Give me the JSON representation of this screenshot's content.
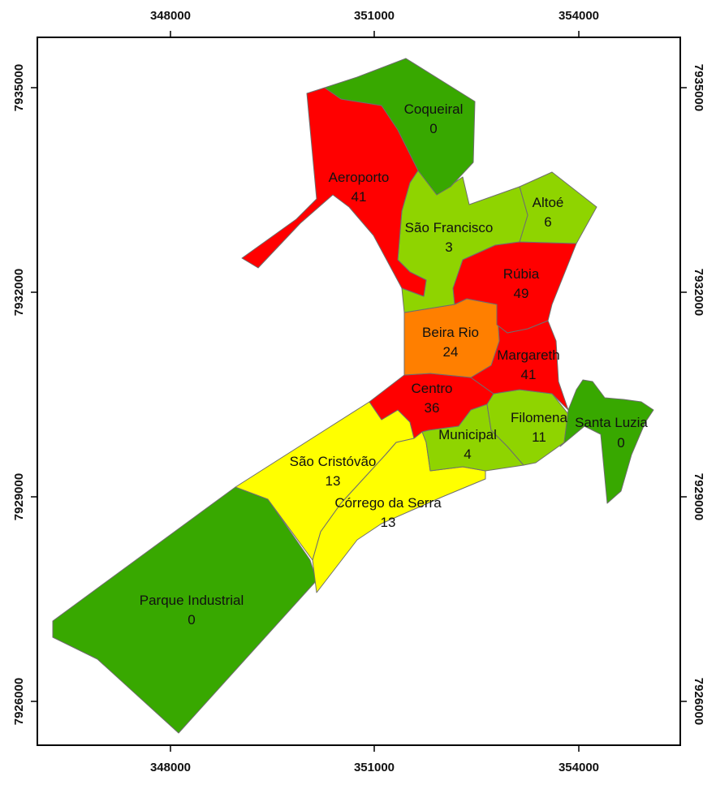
{
  "colors": {
    "very_low": "#38a800",
    "low": "#8fd400",
    "medium": "#ffff00",
    "high": "#ff7f00",
    "very_high": "#ff0000"
  },
  "axes": {
    "x_ticks": [
      "348000",
      "351000",
      "354000"
    ],
    "y_ticks": [
      "7935000",
      "7932000",
      "7929000",
      "7926000"
    ]
  },
  "neighborhoods": [
    {
      "name": "Coqueiral",
      "value": "0",
      "class": "very_low"
    },
    {
      "name": "Aeroporto",
      "value": "41",
      "class": "very_high"
    },
    {
      "name": "São Francisco",
      "value": "3",
      "class": "low"
    },
    {
      "name": "Altoé",
      "value": "6",
      "class": "low"
    },
    {
      "name": "Rúbia",
      "value": "49",
      "class": "very_high"
    },
    {
      "name": "Beira Rio",
      "value": "24",
      "class": "high"
    },
    {
      "name": "Margareth",
      "value": "41",
      "class": "very_high"
    },
    {
      "name": "Centro",
      "value": "36",
      "class": "very_high"
    },
    {
      "name": "Filomena",
      "value": "11",
      "class": "low"
    },
    {
      "name": "Municipal",
      "value": "4",
      "class": "low"
    },
    {
      "name": "Santa Luzia",
      "value": "0",
      "class": "very_low"
    },
    {
      "name": "São Cristóvão",
      "value": "13",
      "class": "medium"
    },
    {
      "name": "Córrego da Serra",
      "value": "13",
      "class": "medium"
    },
    {
      "name": "Parque Industrial",
      "value": "0",
      "class": "very_low"
    }
  ]
}
